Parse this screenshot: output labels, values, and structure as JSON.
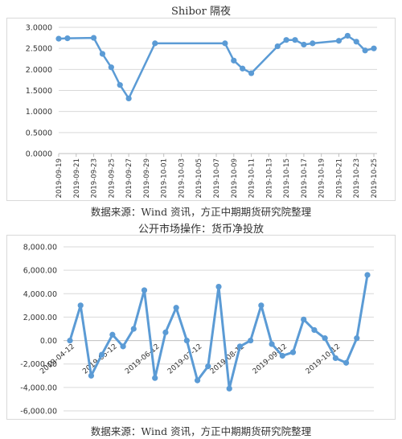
{
  "chart_data": [
    {
      "type": "line",
      "title": "Shibor 隔夜",
      "source": "数据来源：Wind 资讯，方正中期期货研究院整理",
      "y_ticks": [
        "3.0000",
        "2.5000",
        "2.0000",
        "1.5000",
        "1.0000",
        "0.5000",
        "0.0000"
      ],
      "ylim": [
        0,
        3
      ],
      "x_tick_labels": [
        "2019-09-19",
        "2019-09-21",
        "2019-09-23",
        "2019-09-25",
        "2019-09-27",
        "2019-09-29",
        "2019-10-01",
        "2019-10-03",
        "2019-10-05",
        "2019-10-07",
        "2019-10-09",
        "2019-10-11",
        "2019-10-13",
        "2019-10-15",
        "2019-10-17",
        "2019-10-19",
        "2019-10-21",
        "2019-10-23",
        "2019-10-25"
      ],
      "points": [
        {
          "x": "2019-09-19",
          "y": 2.73
        },
        {
          "x": "2019-09-20",
          "y": 2.74
        },
        {
          "x": "2019-09-23",
          "y": 2.75
        },
        {
          "x": "2019-09-24",
          "y": 2.37
        },
        {
          "x": "2019-09-25",
          "y": 2.05
        },
        {
          "x": "2019-09-26",
          "y": 1.63
        },
        {
          "x": "2019-09-27",
          "y": 1.31
        },
        {
          "x": "2019-09-30",
          "y": 2.62
        },
        {
          "x": "2019-10-08",
          "y": 2.62
        },
        {
          "x": "2019-10-09",
          "y": 2.21
        },
        {
          "x": "2019-10-10",
          "y": 2.02
        },
        {
          "x": "2019-10-11",
          "y": 1.91
        },
        {
          "x": "2019-10-14",
          "y": 2.55
        },
        {
          "x": "2019-10-15",
          "y": 2.7
        },
        {
          "x": "2019-10-16",
          "y": 2.7
        },
        {
          "x": "2019-10-17",
          "y": 2.59
        },
        {
          "x": "2019-10-18",
          "y": 2.62
        },
        {
          "x": "2019-10-21",
          "y": 2.68
        },
        {
          "x": "2019-10-22",
          "y": 2.8
        },
        {
          "x": "2019-10-23",
          "y": 2.66
        },
        {
          "x": "2019-10-24",
          "y": 2.45
        },
        {
          "x": "2019-10-25",
          "y": 2.5
        }
      ],
      "color": "#5b9bd5",
      "grid": true
    },
    {
      "type": "line",
      "title": "公开市场操作：货币净投放",
      "source": "数据来源：Wind 资讯，方正中期期货研究院整理",
      "y_ticks": [
        "8,000.00",
        "6,000.00",
        "4,000.00",
        "2,000.00",
        "0.00",
        "-2,000.00",
        "-4,000.00",
        "-6,000.00"
      ],
      "ylim": [
        -6000,
        8000
      ],
      "x_tick_labels": [
        "2019-04-12",
        "2019-05-12",
        "2019-06-12",
        "2019-07-12",
        "2019-08-12",
        "2019-09-12",
        "2019-10-12"
      ],
      "values": [
        0,
        3000,
        -3000,
        -1200,
        500,
        -500,
        1000,
        4300,
        -3200,
        700,
        2800,
        0,
        -3400,
        -2200,
        4600,
        -4100,
        -500,
        0,
        3000,
        -300,
        -1300,
        -1000,
        1800,
        900,
        200,
        -1500,
        -1900,
        200,
        5600
      ],
      "color": "#5b9bd5",
      "grid": true
    }
  ]
}
